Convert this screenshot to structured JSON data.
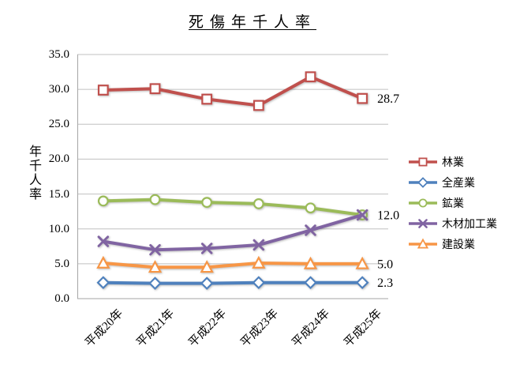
{
  "title": "死傷年千人率",
  "y_axis": {
    "title": "年千人率",
    "ticks": [
      "35.0",
      "30.0",
      "25.0",
      "20.0",
      "15.0",
      "10.0",
      "5.0",
      "0.0"
    ]
  },
  "chart_data": {
    "type": "line",
    "title": "死傷年千人率",
    "ylabel": "年千人率",
    "ylim": [
      0,
      35
    ],
    "grid": true,
    "legend_position": "right",
    "categories": [
      "平成20年",
      "平成21年",
      "平成22年",
      "平成23年",
      "平成24年",
      "平成25年"
    ],
    "series": [
      {
        "name": "林業",
        "color": "#C0504D",
        "marker": "square",
        "values": [
          29.9,
          30.1,
          28.6,
          27.7,
          31.8,
          28.7
        ],
        "end_label": "28.7"
      },
      {
        "name": "全産業",
        "color": "#4F81BD",
        "marker": "diamond",
        "values": [
          2.3,
          2.2,
          2.2,
          2.3,
          2.3,
          2.3
        ],
        "end_label": "2.3"
      },
      {
        "name": "鉱業",
        "color": "#9BBB59",
        "marker": "circle",
        "values": [
          14.0,
          14.2,
          13.8,
          13.6,
          13.0,
          12.0
        ],
        "end_label": ""
      },
      {
        "name": "木材加工業",
        "color": "#8064A2",
        "marker": "x",
        "values": [
          8.2,
          7.0,
          7.2,
          7.7,
          9.8,
          12.0
        ],
        "end_label": "12.0"
      },
      {
        "name": "建設業",
        "color": "#F79646",
        "marker": "triangle",
        "values": [
          5.1,
          4.5,
          4.5,
          5.1,
          5.0,
          5.0
        ],
        "end_label": "5.0"
      }
    ]
  }
}
